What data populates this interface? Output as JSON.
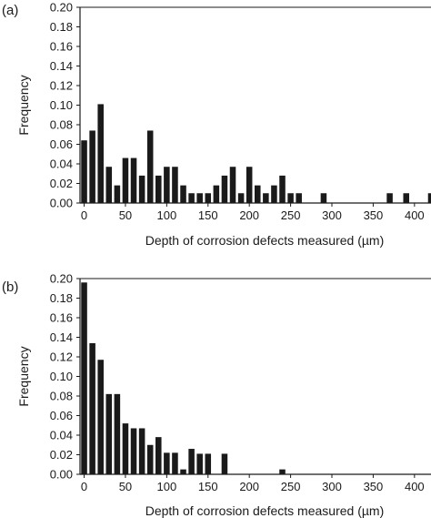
{
  "chart_data": [
    {
      "panel": "(a)",
      "type": "bar",
      "xlabel": "Depth of corrosion defects measured (µm)",
      "ylabel": "Frequency",
      "ylim": [
        0,
        0.2
      ],
      "xlim": [
        -5,
        420
      ],
      "xticks": [
        0,
        50,
        100,
        150,
        200,
        250,
        300,
        350,
        400
      ],
      "yticks": [
        0,
        0.02,
        0.04,
        0.06,
        0.08,
        0.1,
        0.12,
        0.14,
        0.16,
        0.18,
        0.2
      ],
      "ytick_labels": [
        "0.00",
        "0.02",
        "0.04",
        "0.06",
        "0.08",
        "0.10",
        "0.12",
        "0.14",
        "0.16",
        "0.18",
        "0.20"
      ],
      "grid": false,
      "bin_width": 10,
      "x": [
        0,
        10,
        20,
        30,
        40,
        50,
        60,
        70,
        80,
        90,
        100,
        110,
        120,
        130,
        140,
        150,
        160,
        170,
        180,
        190,
        200,
        210,
        220,
        230,
        240,
        250,
        260,
        290,
        370,
        390,
        420
      ],
      "values": [
        0.064,
        0.074,
        0.101,
        0.037,
        0.018,
        0.046,
        0.046,
        0.028,
        0.074,
        0.028,
        0.037,
        0.037,
        0.018,
        0.01,
        0.01,
        0.01,
        0.018,
        0.028,
        0.037,
        0.01,
        0.037,
        0.018,
        0.01,
        0.018,
        0.028,
        0.01,
        0.01,
        0.01,
        0.01,
        0.01,
        0.01
      ],
      "color": "#1a1a1a"
    },
    {
      "panel": "(b)",
      "type": "bar",
      "xlabel": "Depth of corrosion defects measured (µm)",
      "ylabel": "Frequency",
      "ylim": [
        0,
        0.2
      ],
      "xlim": [
        -5,
        420
      ],
      "xticks": [
        0,
        50,
        100,
        150,
        200,
        250,
        300,
        350,
        400
      ],
      "yticks": [
        0,
        0.02,
        0.04,
        0.06,
        0.08,
        0.1,
        0.12,
        0.14,
        0.16,
        0.18,
        0.2
      ],
      "ytick_labels": [
        "0.00",
        "0.02",
        "0.04",
        "0.06",
        "0.08",
        "0.10",
        "0.12",
        "0.14",
        "0.16",
        "0.18",
        "0.20"
      ],
      "grid": false,
      "bin_width": 10,
      "x": [
        0,
        10,
        20,
        30,
        40,
        50,
        60,
        70,
        80,
        90,
        100,
        110,
        120,
        130,
        140,
        150,
        170,
        240
      ],
      "values": [
        0.196,
        0.134,
        0.117,
        0.082,
        0.082,
        0.052,
        0.047,
        0.047,
        0.03,
        0.038,
        0.022,
        0.022,
        0.005,
        0.026,
        0.021,
        0.021,
        0.021,
        0.005
      ],
      "color": "#1a1a1a"
    }
  ]
}
